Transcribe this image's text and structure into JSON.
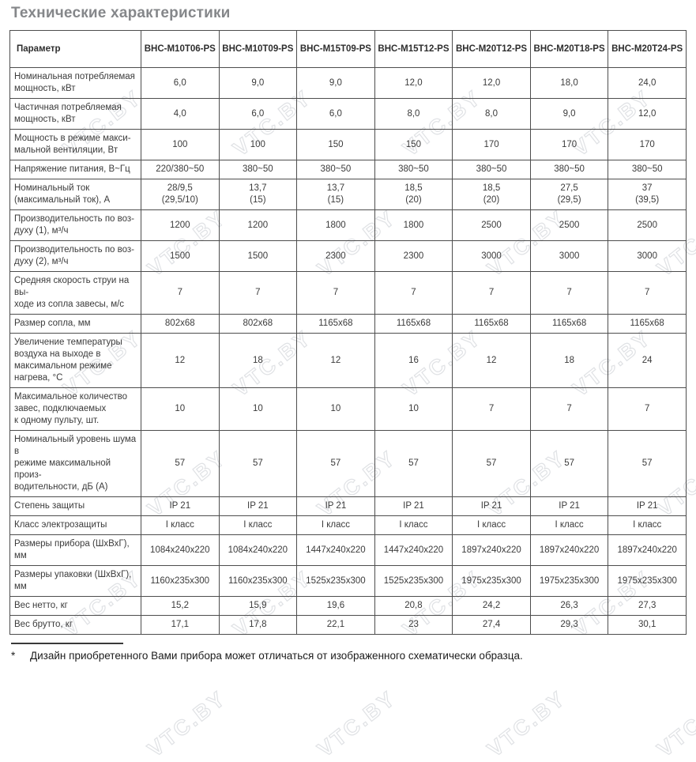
{
  "page": {
    "title": "Технические характеристики",
    "watermark_text": "VTC.BY"
  },
  "table": {
    "columns": [
      "Параметр",
      "BHC-M10T06-PS",
      "BHC-M10T09-PS",
      "BHC-M15T09-PS",
      "BHC-M15T12-PS",
      "BHC-M20T12-PS",
      "BHC-M20T18-PS",
      "BHC-M20T24-PS"
    ],
    "rows": [
      {
        "param": "Номинальная потребляемая\nмощность, кВт",
        "values": [
          "6,0",
          "9,0",
          "9,0",
          "12,0",
          "12,0",
          "18,0",
          "24,0"
        ]
      },
      {
        "param": "Частичная потребляемая\nмощность, кВт",
        "values": [
          "4,0",
          "6,0",
          "6,0",
          "8,0",
          "8,0",
          "9,0",
          "12,0"
        ]
      },
      {
        "param": "Мощность в режиме макси-\nмальной вентиляции, Вт",
        "values": [
          "100",
          "100",
          "150",
          "150",
          "170",
          "170",
          "170"
        ]
      },
      {
        "param": "Напряжение питания, В~Гц",
        "values": [
          "220/380~50",
          "380~50",
          "380~50",
          "380~50",
          "380~50",
          "380~50",
          "380~50"
        ]
      },
      {
        "param": "Номинальный ток\n(максимальный ток), А",
        "values": [
          "28/9,5\n(29,5/10)",
          "13,7\n(15)",
          "13,7\n(15)",
          "18,5\n(20)",
          "18,5\n(20)",
          "27,5\n(29,5)",
          "37\n(39,5)"
        ]
      },
      {
        "param": "Производительность по воз-\nдуху (1), м³/ч",
        "values": [
          "1200",
          "1200",
          "1800",
          "1800",
          "2500",
          "2500",
          "2500"
        ]
      },
      {
        "param": "Производительность по воз-\nдуху (2), м³/ч",
        "values": [
          "1500",
          "1500",
          "2300",
          "2300",
          "3000",
          "3000",
          "3000"
        ]
      },
      {
        "param": "Средняя скорость струи на вы-\nходе из сопла завесы, м/с",
        "values": [
          "7",
          "7",
          "7",
          "7",
          "7",
          "7",
          "7"
        ]
      },
      {
        "param": "Размер сопла, мм",
        "values": [
          "802x68",
          "802x68",
          "1165x68",
          "1165x68",
          "1165x68",
          "1165x68",
          "1165x68"
        ]
      },
      {
        "param": "Увеличение температуры\nвоздуха на выходе в\nмаксимальном режиме\nнагрева, °С",
        "values": [
          "12",
          "18",
          "12",
          "16",
          "12",
          "18",
          "24"
        ]
      },
      {
        "param": "Максимальное количество\nзавес, подключаемых\nк одному пульту, шт.",
        "values": [
          "10",
          "10",
          "10",
          "10",
          "7",
          "7",
          "7"
        ]
      },
      {
        "param": "Номинальный уровень шума в\nрежиме максимальной произ-\nводительности, дБ (А)",
        "values": [
          "57",
          "57",
          "57",
          "57",
          "57",
          "57",
          "57"
        ]
      },
      {
        "param": "Степень защиты",
        "values": [
          "IP 21",
          "IP 21",
          "IP 21",
          "IP 21",
          "IP 21",
          "IP 21",
          "IP 21"
        ]
      },
      {
        "param": "Класс электрозащиты",
        "values": [
          "I класс",
          "I класс",
          "I класс",
          "I класс",
          "I класс",
          "I класс",
          "I класс"
        ]
      },
      {
        "param": "Размеры прибора (ШхВхГ), мм",
        "values": [
          "1084x240x220",
          "1084x240x220",
          "1447x240x220",
          "1447x240x220",
          "1897x240x220",
          "1897x240x220",
          "1897x240x220"
        ]
      },
      {
        "param": "Размеры упаковки (ШхВхГ), мм",
        "values": [
          "1160x235x300",
          "1160x235x300",
          "1525x235x300",
          "1525x235x300",
          "1975x235x300",
          "1975x235x300",
          "1975x235x300"
        ]
      },
      {
        "param": "Вес нетто, кг",
        "values": [
          "15,2",
          "15,9",
          "19,6",
          "20,8",
          "24,2",
          "26,3",
          "27,3"
        ]
      },
      {
        "param": "Вес брутто, кг",
        "values": [
          "17,1",
          "17,8",
          "22,1",
          "23",
          "27,4",
          "29,3",
          "30,1"
        ]
      }
    ]
  },
  "footnote": {
    "marker": "*",
    "text": "Дизайн приобретенного Вами прибора может отличаться от изображенного схематически образца."
  }
}
